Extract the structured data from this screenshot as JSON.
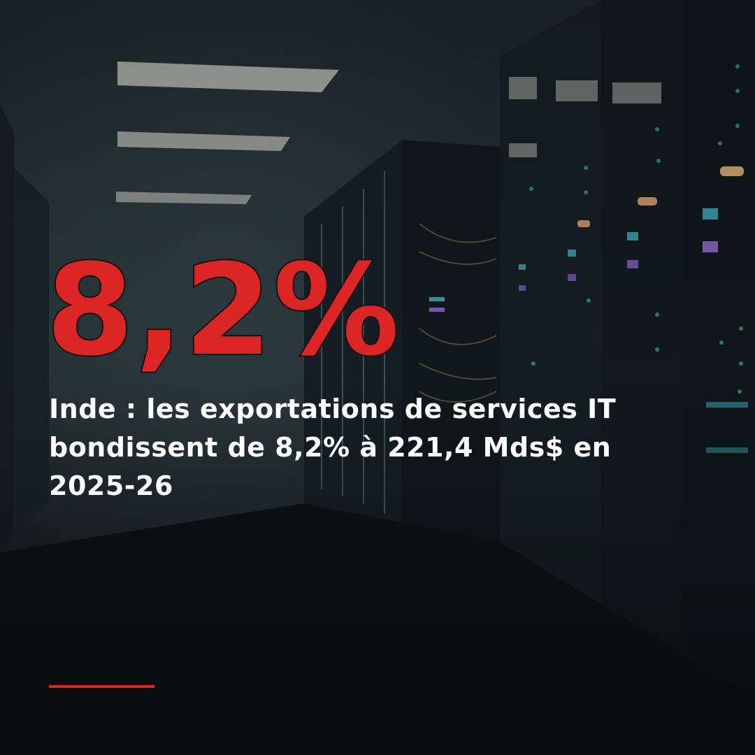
{
  "headline_stat": "8,2%",
  "headline": "Inde : les exportations de services IT bondissent de 8,2% à 221,4 Mds$ en 2025-26"
}
